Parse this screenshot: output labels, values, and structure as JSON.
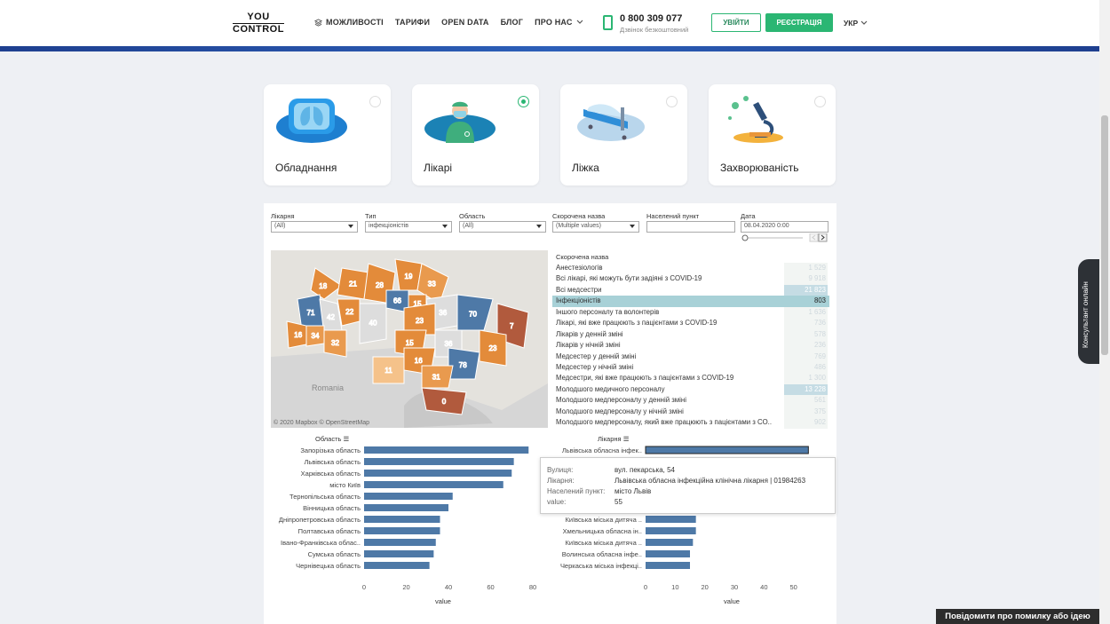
{
  "header": {
    "logo_top": "YOU",
    "logo_bottom": "CONTROL",
    "nav": [
      "МОЖЛИВОСТІ",
      "ТАРИФИ",
      "OPEN DATA",
      "БЛОГ",
      "ПРО НАС"
    ],
    "phone": "0 800 309 077",
    "phone_sub": "Дзвінок безкоштовний",
    "login": "УВІЙТИ",
    "register": "РЕЄСТРАЦІЯ",
    "lang": "УКР"
  },
  "cards": [
    {
      "label": "Обладнання",
      "selected": false
    },
    {
      "label": "Лікарі",
      "selected": true
    },
    {
      "label": "Ліжка",
      "selected": false
    },
    {
      "label": "Захворюваність",
      "selected": false
    }
  ],
  "filters": [
    {
      "label": "Лікарня",
      "value": "(All)"
    },
    {
      "label": "Тип",
      "value": "інфекціоністів"
    },
    {
      "label": "Область",
      "value": "(All)"
    },
    {
      "label": "Скорочена назва",
      "value": "(Multiple values)"
    },
    {
      "label": "Населений пункт",
      "value": ""
    },
    {
      "label": "Дата",
      "value": "08.04.2020 0:00"
    }
  ],
  "map": {
    "credit": "© 2020 Mapbox © OpenStreetMap",
    "country_label": "Romania",
    "region_values": [
      "18",
      "21",
      "28",
      "19",
      "33",
      "71",
      "42",
      "22",
      "40",
      "66",
      "15",
      "36",
      "70",
      "16",
      "34",
      "32",
      "23",
      "15",
      "36",
      "7",
      "23",
      "11",
      "16",
      "78",
      "31",
      "0"
    ]
  },
  "list": {
    "header": "Скорочена назва",
    "rows": [
      {
        "name": "Анестезіологів",
        "value": "1 529"
      },
      {
        "name": "Всі лікарі, які можуть бути задіяні з COVID-19",
        "value": "9 918"
      },
      {
        "name": "Всі медсестри",
        "value": "21 823"
      },
      {
        "name": "Інфекціоністів",
        "value": "803"
      },
      {
        "name": "Іншого персоналу та волонтерів",
        "value": "1 636"
      },
      {
        "name": "Лікарі, які вже працюють з пацієнтами з COVID-19",
        "value": "736"
      },
      {
        "name": "Лікарів у денній зміні",
        "value": "578"
      },
      {
        "name": "Лікарів у нічній зміні",
        "value": "236"
      },
      {
        "name": "Медсестер у денній зміні",
        "value": "769"
      },
      {
        "name": "Медсестер у нічній зміні",
        "value": "486"
      },
      {
        "name": "Медсестри, які вже працюють з пацієнтами з COVID-19",
        "value": "1 300"
      },
      {
        "name": "Молодшого медичного персоналу",
        "value": "13 228"
      },
      {
        "name": "Молодшого медперсоналу у денній зміні",
        "value": "561"
      },
      {
        "name": "Молодшого медперсоналу у нічній зміні",
        "value": "375"
      },
      {
        "name": "Молодшого медперсоналу, який вже працюють з пацієнтами з CO..",
        "value": "902"
      }
    ]
  },
  "chart_data": [
    {
      "type": "bar",
      "title": "Область",
      "xlabel": "value",
      "categories": [
        "Запорізька область",
        "Львівська область",
        "Харківська область",
        "місто Київ",
        "Тернопільська область",
        "Вінницька область",
        "Дніпропетровська область",
        "Полтавська область",
        "Івано-Франківська облас..",
        "Сумська область",
        "Чернівецька область"
      ],
      "values": [
        78,
        71,
        70,
        66,
        42,
        40,
        36,
        36,
        34,
        33,
        31
      ],
      "xlim": [
        0,
        80
      ],
      "xticks": [
        "0",
        "20",
        "40",
        "60",
        "80"
      ]
    },
    {
      "type": "bar",
      "title": "Лікарня",
      "xlabel": "value",
      "categories": [
        "Львівська обласна інфек..",
        "Київська міська дитяча ..",
        "Хмельницька обласна ін..",
        "Київська міська дитяча ..",
        "Волинська обласна інфе..",
        "Черкаська міська інфекці.."
      ],
      "values": [
        55,
        17,
        17,
        16,
        15,
        15
      ],
      "xlim": [
        0,
        60
      ],
      "xticks": [
        "0",
        "10",
        "20",
        "30",
        "40",
        "50"
      ]
    }
  ],
  "tooltip": {
    "rows": [
      {
        "key": "Вулиця:",
        "value": "вул. пекарська, 54"
      },
      {
        "key": "Лікарня:",
        "value": "Львівська обласна інфекційна клінічна лікарня | 01984263"
      },
      {
        "key": "Населений пункт:",
        "value": "місто Львів"
      },
      {
        "key": "value:",
        "value": "55"
      }
    ]
  },
  "widgets": {
    "consultant": "Консультант онлайн",
    "report": "Повідомити про помилку або ідею"
  },
  "colors": {
    "accent": "#2bb673",
    "bar": "#4e79a7",
    "highlight": "#a8d1d7"
  }
}
